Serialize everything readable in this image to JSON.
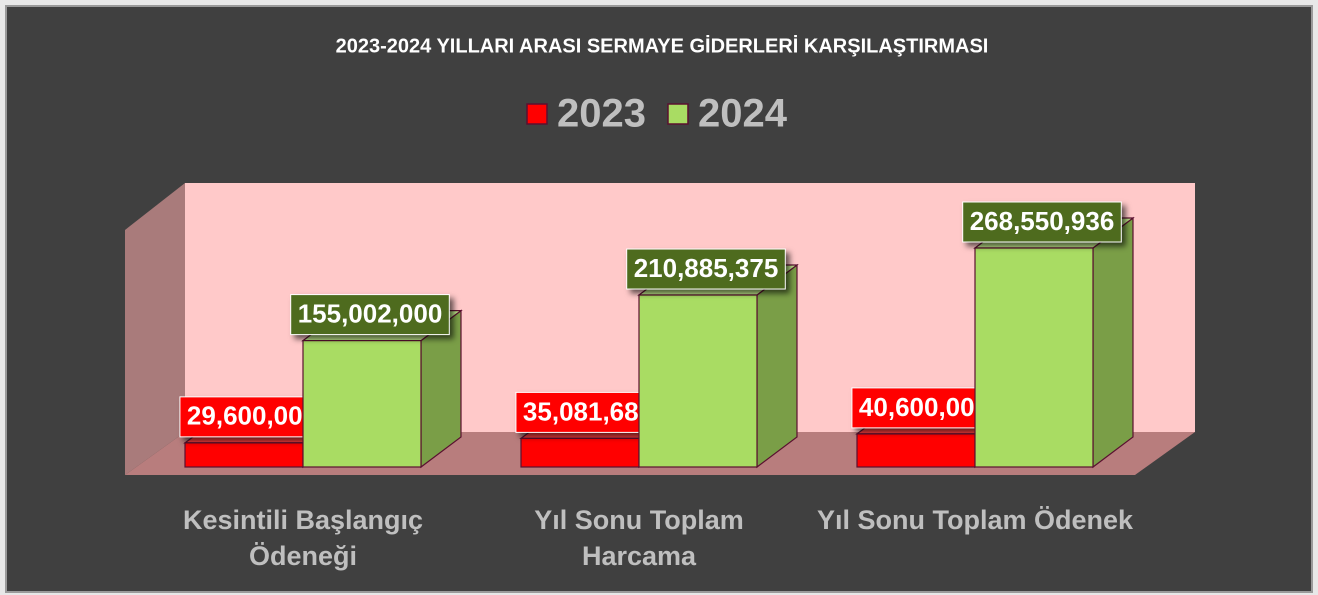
{
  "chart_data": {
    "type": "bar3d",
    "title": "2023-2024 YILLARI ARASI SERMAYE GİDERLERİ KARŞILAŞTIRMASI",
    "categories": [
      "Kesintili Başlangıç Ödeneği",
      "Yıl Sonu Toplam Harcama",
      "Yıl Sonu Toplam Ödenek"
    ],
    "series": [
      {
        "name": "2023",
        "color": "#ff0000",
        "values": [
          29600000,
          35081685,
          40600000
        ],
        "value_labels": [
          "29,600,000",
          "35,081,685",
          "40,600,000"
        ]
      },
      {
        "name": "2024",
        "color": "#a9dc63",
        "values": [
          155002000,
          210885375,
          268550936
        ],
        "value_labels": [
          "155,002,000",
          "210,885,375",
          "268,550,936"
        ]
      }
    ],
    "legend": "top"
  }
}
